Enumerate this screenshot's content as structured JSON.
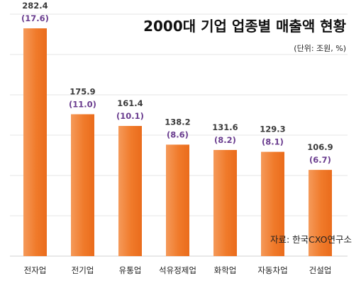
{
  "chart_data": {
    "type": "bar",
    "title": "2000대 기업 업종별 매출액 현황",
    "subtitle": "(단위: 조원, %)",
    "source": "자료: 한국CXO연구소",
    "categories": [
      "전자업",
      "전기업",
      "유통업",
      "석유정제업",
      "화학업",
      "자동차업",
      "건설업"
    ],
    "values": [
      282.4,
      175.9,
      161.4,
      138.2,
      131.6,
      129.3,
      106.9
    ],
    "value_labels": [
      "282.4",
      "175.9",
      "161.4",
      "138.2",
      "131.6",
      "129.3",
      "106.9"
    ],
    "shares": [
      "(17.6)",
      "(11.0)",
      "(10.1)",
      "(8.6)",
      "(8.2)",
      "(8.1)",
      "(6.7)"
    ],
    "ylim": [
      0,
      300
    ],
    "grid": true,
    "legend": "none",
    "colors": {
      "bar": "#f07a2a",
      "bar_light": "#f59a5a",
      "share_text": "#6a3d8f"
    }
  }
}
